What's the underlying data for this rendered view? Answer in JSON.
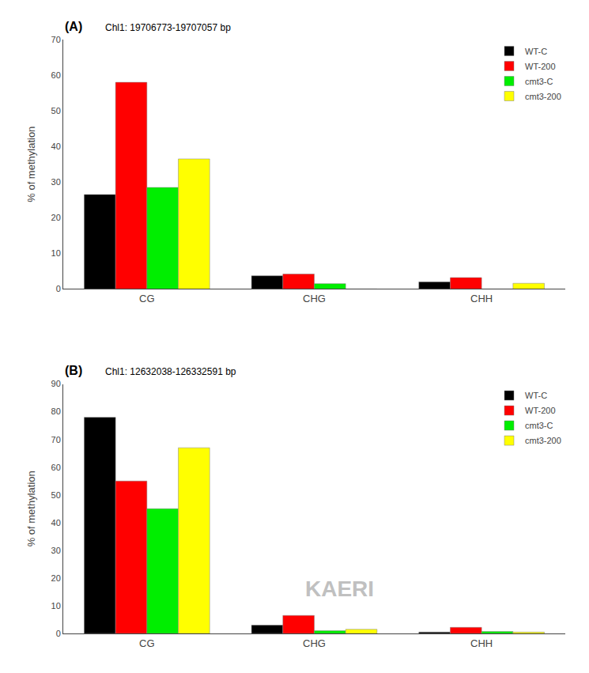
{
  "chart_data": [
    {
      "type": "bar",
      "title": "Chl1: 19706773-19707057 bp",
      "annotations": [
        "(A)"
      ],
      "categories": [
        "CG",
        "CHG",
        "CHH"
      ],
      "series": [
        {
          "name": "WT-C",
          "color": "#000000",
          "values": [
            26.5,
            3.7,
            2.0
          ]
        },
        {
          "name": "WT-200",
          "color": "#ff0000",
          "values": [
            58.0,
            4.2,
            3.2
          ]
        },
        {
          "name": "cmt3-C",
          "color": "#00ee00",
          "values": [
            28.5,
            1.5,
            0.0
          ]
        },
        {
          "name": "cmt3-200",
          "color": "#ffff00",
          "values": [
            36.5,
            0.0,
            1.6
          ]
        }
      ],
      "ylabel": "% of methylation",
      "ylim": [
        0,
        70
      ],
      "yticks": [
        0,
        10,
        20,
        30,
        40,
        50,
        60,
        70
      ],
      "grid": false,
      "legend": "upper right"
    },
    {
      "type": "bar",
      "title": "Chl1: 12632038-126332591 bp",
      "annotations": [
        "(B)",
        "KAERI"
      ],
      "categories": [
        "CG",
        "CHG",
        "CHH"
      ],
      "series": [
        {
          "name": "WT-C",
          "color": "#000000",
          "values": [
            78.0,
            3.0,
            0.5
          ]
        },
        {
          "name": "WT-200",
          "color": "#ff0000",
          "values": [
            55.0,
            6.5,
            2.2
          ]
        },
        {
          "name": "cmt3-C",
          "color": "#00ee00",
          "values": [
            45.0,
            1.0,
            0.7
          ]
        },
        {
          "name": "cmt3-200",
          "color": "#ffff00",
          "values": [
            67.0,
            1.5,
            0.5
          ]
        }
      ],
      "ylabel": "% of methylation",
      "ylim": [
        0,
        90
      ],
      "yticks": [
        0,
        10,
        20,
        30,
        40,
        50,
        60,
        70,
        80,
        90
      ],
      "grid": false,
      "legend": "upper right"
    }
  ]
}
